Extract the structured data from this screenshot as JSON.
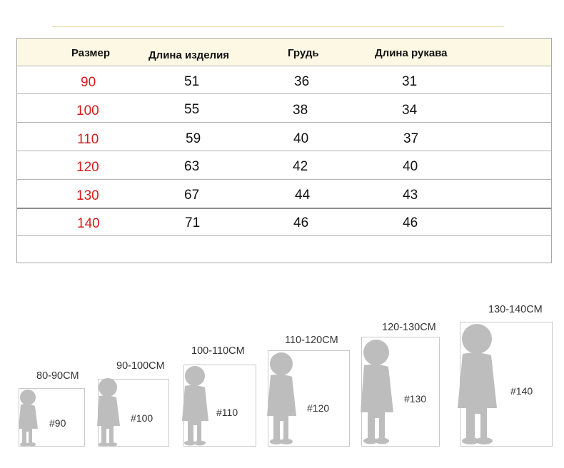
{
  "table": {
    "headers": {
      "size": "Размер",
      "length": "Длина изделия",
      "chest": "Грудь",
      "sleeve": "Длина рукава"
    },
    "rows": [
      {
        "size": "90",
        "length": "51",
        "chest": "36",
        "sleeve": "31"
      },
      {
        "size": "100",
        "length": "55",
        "chest": "38",
        "sleeve": "34"
      },
      {
        "size": "110",
        "length": "59",
        "chest": "40",
        "sleeve": "37"
      },
      {
        "size": "120",
        "length": "63",
        "chest": "42",
        "sleeve": "40"
      },
      {
        "size": "130",
        "length": "67",
        "chest": "44",
        "sleeve": "43"
      },
      {
        "size": "140",
        "length": "71",
        "chest": "46",
        "sleeve": "46"
      }
    ]
  },
  "figures": [
    {
      "range": "80-90CM",
      "tag": "#90"
    },
    {
      "range": "90-100CM",
      "tag": "#100"
    },
    {
      "range": "100-110CM",
      "tag": "#110"
    },
    {
      "range": "110-120CM",
      "tag": "#120"
    },
    {
      "range": "120-130CM",
      "tag": "#130"
    },
    {
      "range": "130-140CM",
      "tag": "#140"
    }
  ],
  "colors": {
    "size_text": "#d51b1b",
    "header_bg": "#fdf8e4",
    "silhouette": "#bdbdbd"
  }
}
